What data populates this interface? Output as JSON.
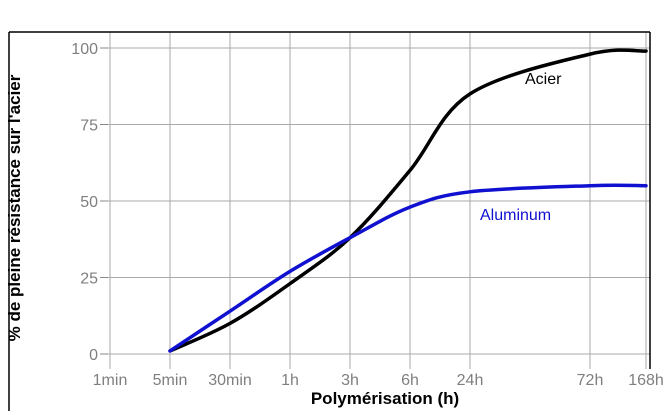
{
  "chart_data": {
    "type": "line",
    "title": "",
    "xlabel": "Polymérisation (h)",
    "ylabel": "% de pleine résistance sur l'acier",
    "x_categories": [
      "1min",
      "5min",
      "30min",
      "1h",
      "3h",
      "6h",
      "24h",
      "72h",
      "168h"
    ],
    "ylim": [
      0,
      100
    ],
    "yticks": [
      0,
      25,
      50,
      75,
      100
    ],
    "grid": true,
    "series": [
      {
        "name": "Acier",
        "color": "#000000",
        "points": [
          {
            "x": "5min",
            "y": 1
          },
          {
            "x": "30min",
            "y": 10
          },
          {
            "x": "1h",
            "y": 23
          },
          {
            "x": "3h",
            "y": 38
          },
          {
            "x": "6h",
            "y": 60
          },
          {
            "x": "24h",
            "y": 85
          },
          {
            "x": "72h",
            "y": 98
          },
          {
            "x": "168h",
            "y": 99
          }
        ]
      },
      {
        "name": "Aluminum",
        "color": "#1010d0",
        "points": [
          {
            "x": "5min",
            "y": 1
          },
          {
            "x": "30min",
            "y": 14
          },
          {
            "x": "1h",
            "y": 27
          },
          {
            "x": "3h",
            "y": 38
          },
          {
            "x": "6h",
            "y": 48
          },
          {
            "x": "24h",
            "y": 53
          },
          {
            "x": "72h",
            "y": 55
          },
          {
            "x": "168h",
            "y": 55
          }
        ]
      }
    ]
  }
}
